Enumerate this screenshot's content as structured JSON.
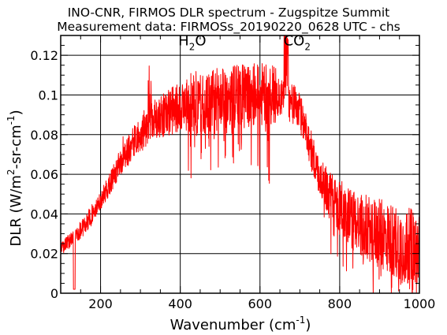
{
  "chart_data": {
    "type": "line",
    "title": "INO-CNR, FIRMOS DLR spectrum - Zugspitze Summit",
    "subtitle": "Measurement data: FIRMOSs_20190220_0628 UTC - chs",
    "xlabel": {
      "main": "Wavenumber (cm",
      "sup": "-1",
      "end": ")"
    },
    "ylabel": {
      "p1": "DLR (W/m",
      "sup1": "2",
      "p2": "-sr-cm",
      "sup2": "-1",
      "p3": ")"
    },
    "xlim": [
      100,
      1000
    ],
    "ylim": [
      0,
      0.13
    ],
    "xticks": [
      200,
      400,
      600,
      800,
      1000
    ],
    "yticks": [
      0,
      0.02,
      0.04,
      0.06,
      0.08,
      0.1,
      0.12
    ],
    "ytick_labels": [
      "0",
      "0.02",
      "0.04",
      "0.06",
      "0.08",
      "0.1",
      "0.12"
    ],
    "grid": true,
    "line_color": "#ff0000",
    "annotations": [
      {
        "base": "H",
        "sub": "2",
        "rest": "O",
        "x": 430,
        "y": 0.125
      },
      {
        "base": "CO",
        "sub": "2",
        "rest": "",
        "x": 693,
        "y": 0.125
      }
    ],
    "series": [
      {
        "x": [
          100,
          110,
          120,
          130,
          140,
          150,
          160,
          170,
          180,
          190,
          200,
          210,
          220,
          230,
          240,
          250,
          260,
          270,
          280,
          290,
          300,
          310,
          320,
          330,
          340,
          350,
          360,
          370,
          380,
          390,
          400,
          410,
          420,
          430,
          440,
          450,
          460,
          470,
          480,
          490,
          500,
          510,
          520,
          530,
          540,
          550,
          560,
          570,
          580,
          590,
          600,
          610,
          620,
          630,
          640,
          650,
          660,
          670,
          680,
          690,
          700,
          710,
          720,
          730,
          740,
          750,
          760,
          770,
          780,
          790,
          800,
          810,
          820,
          830,
          840,
          850,
          860,
          870,
          880,
          890,
          900,
          910,
          920,
          930,
          940,
          950,
          960,
          970,
          980,
          990,
          1000
        ],
        "y": [
          0.022,
          0.024,
          0.026,
          0.028,
          0.03,
          0.032,
          0.034,
          0.037,
          0.04,
          0.043,
          0.046,
          0.05,
          0.054,
          0.058,
          0.062,
          0.066,
          0.069,
          0.072,
          0.075,
          0.078,
          0.08,
          0.082,
          0.084,
          0.086,
          0.088,
          0.089,
          0.09,
          0.091,
          0.092,
          0.093,
          0.094,
          0.094,
          0.095,
          0.095,
          0.096,
          0.096,
          0.097,
          0.097,
          0.097,
          0.098,
          0.098,
          0.098,
          0.099,
          0.099,
          0.099,
          0.099,
          0.1,
          0.1,
          0.1,
          0.1,
          0.1,
          0.1,
          0.099,
          0.099,
          0.098,
          0.098,
          0.097,
          0.097,
          0.096,
          0.094,
          0.091,
          0.086,
          0.079,
          0.071,
          0.064,
          0.059,
          0.055,
          0.051,
          0.048,
          0.046,
          0.044,
          0.042,
          0.04,
          0.038,
          0.037,
          0.035,
          0.034,
          0.033,
          0.032,
          0.031,
          0.03,
          0.029,
          0.028,
          0.027,
          0.026,
          0.025,
          0.024,
          0.023,
          0.022,
          0.021,
          0.02
        ]
      }
    ]
  }
}
